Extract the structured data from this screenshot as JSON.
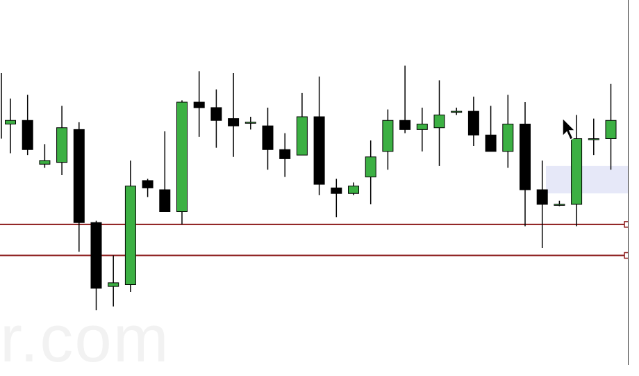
{
  "watermark": "r.com",
  "colors": {
    "bullish": "#3cb043",
    "bearish": "#000000",
    "wick": "#000000",
    "level_line": "#8b1a1a",
    "selection": "#e6e8f8",
    "axis": "#3a3a3a"
  },
  "chart_data": {
    "type": "candlestick",
    "title": "",
    "xlabel": "",
    "ylabel": "",
    "ylim": [
      0,
      100
    ],
    "candles": [
      {
        "o": 66.0,
        "h": 73.0,
        "l": 58.0,
        "c": 67.0
      },
      {
        "o": 67.0,
        "h": 74.0,
        "l": 57.5,
        "c": 59.0
      },
      {
        "o": 55.0,
        "h": 60.5,
        "l": 54.0,
        "c": 56.0
      },
      {
        "o": 55.5,
        "h": 71.0,
        "l": 52.0,
        "c": 65.0
      },
      {
        "o": 64.5,
        "h": 66.5,
        "l": 31.0,
        "c": 39.0
      },
      {
        "o": 39.0,
        "h": 39.5,
        "l": 15.0,
        "c": 21.0
      },
      {
        "o": 21.5,
        "h": 30.0,
        "l": 16.0,
        "c": 22.5
      },
      {
        "o": 22.0,
        "h": 56.0,
        "l": 20.0,
        "c": 49.0
      },
      {
        "o": 50.5,
        "h": 51.0,
        "l": 46.0,
        "c": 48.5
      },
      {
        "o": 48.0,
        "h": 64.0,
        "l": 42.0,
        "c": 42.0
      },
      {
        "o": 42.0,
        "h": 72.5,
        "l": 38.5,
        "c": 72.0
      },
      {
        "o": 72.0,
        "h": 80.5,
        "l": 62.5,
        "c": 70.5
      },
      {
        "o": 70.5,
        "h": 75.5,
        "l": 59.5,
        "c": 67.0
      },
      {
        "o": 67.5,
        "h": 80.0,
        "l": 57.0,
        "c": 65.5
      },
      {
        "o": 66.5,
        "h": 68.0,
        "l": 64.5,
        "c": 66.5
      },
      {
        "o": 65.5,
        "h": 70.5,
        "l": 53.5,
        "c": 59.0
      },
      {
        "o": 59.0,
        "h": 63.5,
        "l": 51.5,
        "c": 56.5
      },
      {
        "o": 57.5,
        "h": 74.5,
        "l": 57.5,
        "c": 68.0
      },
      {
        "o": 68.0,
        "h": 79.0,
        "l": 46.5,
        "c": 49.5
      },
      {
        "o": 48.5,
        "h": 51.0,
        "l": 40.5,
        "c": 47.0
      },
      {
        "o": 47.0,
        "h": 50.0,
        "l": 46.5,
        "c": 49.0
      },
      {
        "o": 51.5,
        "h": 61.5,
        "l": 44.0,
        "c": 57.0
      },
      {
        "o": 58.5,
        "h": 70.0,
        "l": 53.5,
        "c": 67.0
      },
      {
        "o": 67.0,
        "h": 82.0,
        "l": 63.5,
        "c": 64.5
      },
      {
        "o": 64.5,
        "h": 70.5,
        "l": 58.5,
        "c": 66.0
      },
      {
        "o": 65.0,
        "h": 78.0,
        "l": 54.5,
        "c": 68.5
      },
      {
        "o": 69.5,
        "h": 70.5,
        "l": 68.5,
        "c": 69.5
      },
      {
        "o": 69.5,
        "h": 73.5,
        "l": 60.0,
        "c": 63.0
      },
      {
        "o": 63.0,
        "h": 71.0,
        "l": 58.5,
        "c": 58.5
      },
      {
        "o": 58.5,
        "h": 74.0,
        "l": 54.0,
        "c": 66.0
      },
      {
        "o": 66.0,
        "h": 72.0,
        "l": 38.0,
        "c": 48.0
      },
      {
        "o": 48.0,
        "h": 56.0,
        "l": 32.0,
        "c": 44.0
      },
      {
        "o": 44.0,
        "h": 45.0,
        "l": 43.5,
        "c": 44.0
      },
      {
        "o": 44.0,
        "h": 68.5,
        "l": 38.0,
        "c": 62.0
      },
      {
        "o": 62.0,
        "h": 67.5,
        "l": 57.5,
        "c": 62.0
      },
      {
        "o": 62.0,
        "h": 77.0,
        "l": 53.5,
        "c": 67.0
      }
    ],
    "levels": [
      38.5,
      30.0
    ],
    "selection_band": [
      47.0,
      54.5
    ],
    "grid": false,
    "legend": "none"
  }
}
